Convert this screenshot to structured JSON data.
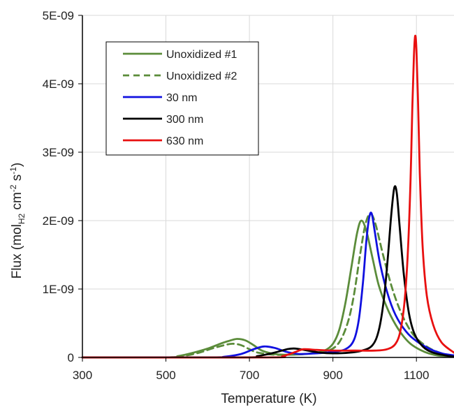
{
  "chart_data": {
    "type": "line",
    "title": "",
    "xlabel": "Temperature (K)",
    "ylabel": {
      "prefix": "Flux (mol",
      "sub": "H2",
      "mid1": " cm",
      "sup1": "-2",
      "mid2": " s",
      "sup2": "-1",
      "suffix": ")"
    },
    "xlim": [
      300,
      1190
    ],
    "ylim": [
      0,
      5e-09
    ],
    "x_ticks": [
      300,
      500,
      700,
      900,
      1100
    ],
    "x_tick_labels": [
      "300",
      "500",
      "700",
      "900",
      "1100"
    ],
    "y_ticks": [
      0,
      1e-09,
      2e-09,
      3e-09,
      4e-09,
      5e-09
    ],
    "y_tick_labels": [
      "0",
      "1E-09",
      "2E-09",
      "3E-09",
      "4E-09",
      "5E-09"
    ],
    "grid": true,
    "legend_position": "top-left",
    "series": [
      {
        "name": "Unoxidized #1",
        "color": "#5b8c3a",
        "dash": "solid",
        "points": [
          [
            300,
            0
          ],
          [
            500,
            0
          ],
          [
            530,
            2e-11
          ],
          [
            560,
            6e-11
          ],
          [
            600,
            1.3e-10
          ],
          [
            630,
            2e-10
          ],
          [
            650,
            2.4e-10
          ],
          [
            670,
            2.7e-10
          ],
          [
            690,
            2.5e-10
          ],
          [
            710,
            1.8e-10
          ],
          [
            730,
            1e-10
          ],
          [
            760,
            5e-11
          ],
          [
            800,
            4e-11
          ],
          [
            850,
            6e-11
          ],
          [
            880,
            1e-10
          ],
          [
            900,
            2e-10
          ],
          [
            915,
            4e-10
          ],
          [
            930,
            8e-10
          ],
          [
            945,
            1.35e-09
          ],
          [
            958,
            1.82e-09
          ],
          [
            968,
            2e-09
          ],
          [
            980,
            1.85e-09
          ],
          [
            995,
            1.45e-09
          ],
          [
            1010,
            1.05e-09
          ],
          [
            1030,
            7.2e-10
          ],
          [
            1050,
            4.8e-10
          ],
          [
            1070,
            3e-10
          ],
          [
            1090,
            1.8e-10
          ],
          [
            1120,
            8e-11
          ],
          [
            1150,
            3e-11
          ],
          [
            1190,
            1e-11
          ]
        ]
      },
      {
        "name": "Unoxidized #2",
        "color": "#5b8c3a",
        "dash": "dashed",
        "points": [
          [
            300,
            0
          ],
          [
            500,
            0
          ],
          [
            540,
            2e-11
          ],
          [
            580,
            7e-11
          ],
          [
            610,
            1.3e-10
          ],
          [
            640,
            1.8e-10
          ],
          [
            660,
            2e-10
          ],
          [
            680,
            1.8e-10
          ],
          [
            700,
            1.2e-10
          ],
          [
            720,
            7e-11
          ],
          [
            760,
            4e-11
          ],
          [
            800,
            4e-11
          ],
          [
            850,
            6e-11
          ],
          [
            890,
            1e-10
          ],
          [
            915,
            2.2e-10
          ],
          [
            935,
            5e-10
          ],
          [
            950,
            9e-10
          ],
          [
            965,
            1.5e-09
          ],
          [
            978,
            1.95e-09
          ],
          [
            990,
            2.1e-09
          ],
          [
            1002,
            1.95e-09
          ],
          [
            1020,
            1.5e-09
          ],
          [
            1040,
            1.05e-09
          ],
          [
            1060,
            7e-10
          ],
          [
            1080,
            4.5e-10
          ],
          [
            1100,
            2.8e-10
          ],
          [
            1130,
            1.4e-10
          ],
          [
            1160,
            6e-11
          ],
          [
            1190,
            2e-11
          ]
        ]
      },
      {
        "name": "30 nm",
        "color": "#1010e0",
        "dash": "solid",
        "points": [
          [
            300,
            0
          ],
          [
            600,
            0
          ],
          [
            640,
            1e-11
          ],
          [
            680,
            5e-11
          ],
          [
            710,
            1.2e-10
          ],
          [
            735,
            1.6e-10
          ],
          [
            760,
            1.4e-10
          ],
          [
            790,
            8e-11
          ],
          [
            820,
            5e-11
          ],
          [
            860,
            6e-11
          ],
          [
            900,
            8e-11
          ],
          [
            930,
            1.2e-10
          ],
          [
            950,
            2.5e-10
          ],
          [
            962,
            5.5e-10
          ],
          [
            972,
            1.1e-09
          ],
          [
            980,
            1.7e-09
          ],
          [
            987,
            2.05e-09
          ],
          [
            993,
            2.1e-09
          ],
          [
            1000,
            1.85e-09
          ],
          [
            1012,
            1.4e-09
          ],
          [
            1030,
            9.5e-10
          ],
          [
            1050,
            6.2e-10
          ],
          [
            1075,
            3.8e-10
          ],
          [
            1100,
            2.4e-10
          ],
          [
            1130,
            1.3e-10
          ],
          [
            1160,
            6e-11
          ],
          [
            1190,
            3e-11
          ]
        ]
      },
      {
        "name": "300 nm",
        "color": "#000000",
        "dash": "solid",
        "points": [
          [
            300,
            0
          ],
          [
            680,
            0
          ],
          [
            720,
            2e-11
          ],
          [
            760,
            7e-11
          ],
          [
            790,
            1.2e-10
          ],
          [
            810,
            1.3e-10
          ],
          [
            840,
            1e-10
          ],
          [
            870,
            7e-11
          ],
          [
            900,
            6e-11
          ],
          [
            940,
            7e-11
          ],
          [
            970,
            1e-10
          ],
          [
            995,
            1.8e-10
          ],
          [
            1010,
            4e-10
          ],
          [
            1022,
            8.5e-10
          ],
          [
            1032,
            1.5e-09
          ],
          [
            1040,
            2.1e-09
          ],
          [
            1047,
            2.48e-09
          ],
          [
            1053,
            2.4e-09
          ],
          [
            1060,
            1.9e-09
          ],
          [
            1070,
            1.2e-09
          ],
          [
            1082,
            6.5e-10
          ],
          [
            1095,
            3.5e-10
          ],
          [
            1115,
            1.6e-10
          ],
          [
            1140,
            7e-11
          ],
          [
            1170,
            3e-11
          ],
          [
            1190,
            1e-11
          ]
        ]
      },
      {
        "name": "630 nm",
        "color": "#e81010",
        "dash": "solid",
        "points": [
          [
            300,
            0
          ],
          [
            740,
            0
          ],
          [
            780,
            2e-11
          ],
          [
            810,
            8e-11
          ],
          [
            830,
            1.2e-10
          ],
          [
            860,
            1.1e-10
          ],
          [
            900,
            1e-10
          ],
          [
            950,
            1e-10
          ],
          [
            1000,
            1e-10
          ],
          [
            1030,
            1.2e-10
          ],
          [
            1050,
            2e-10
          ],
          [
            1062,
            4e-10
          ],
          [
            1072,
            8.5e-10
          ],
          [
            1080,
            1.6e-09
          ],
          [
            1086,
            2.6e-09
          ],
          [
            1090,
            3.6e-09
          ],
          [
            1094,
            4.4e-09
          ],
          [
            1097,
            4.7e-09
          ],
          [
            1100,
            4.5e-09
          ],
          [
            1104,
            3.7e-09
          ],
          [
            1108,
            2.7e-09
          ],
          [
            1115,
            1.6e-09
          ],
          [
            1125,
            9e-10
          ],
          [
            1140,
            4.8e-10
          ],
          [
            1160,
            2.2e-10
          ],
          [
            1190,
            7e-11
          ]
        ]
      }
    ]
  }
}
